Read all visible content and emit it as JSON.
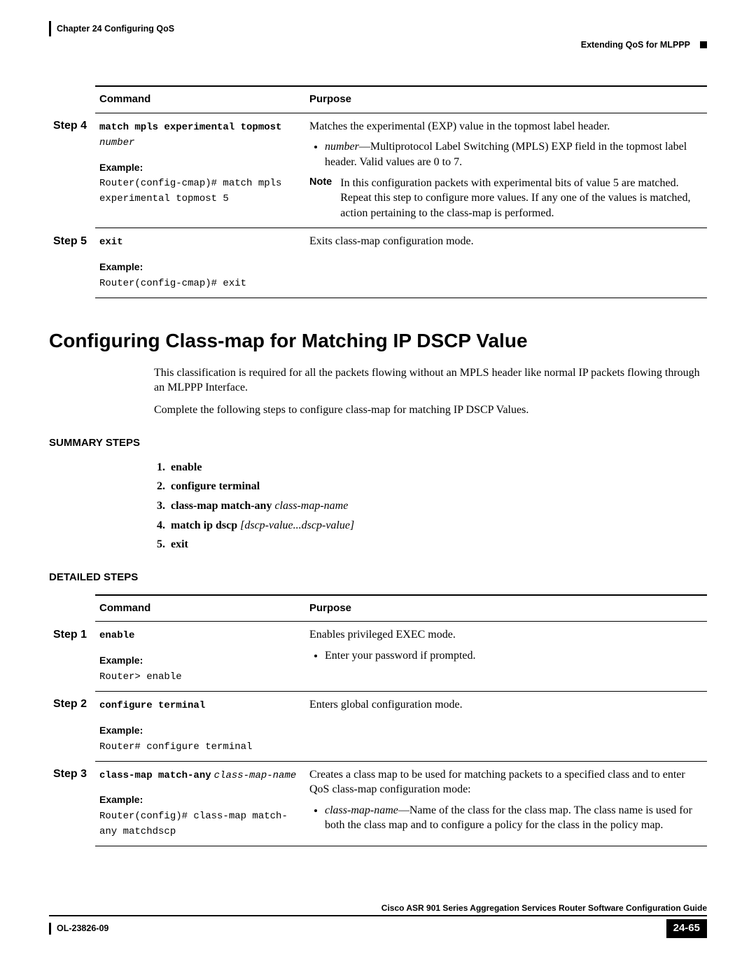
{
  "header": {
    "chapter_line": "Chapter 24    Configuring QoS",
    "right_text": "Extending QoS for MLPPP"
  },
  "table1": {
    "head_command": "Command",
    "head_purpose": "Purpose",
    "step4": {
      "label": "Step 4",
      "cmd": "match mpls experimental topmost",
      "cmd_arg": "number",
      "example_label": "Example:",
      "example_code": "Router(config-cmap)# match mpls experimental topmost 5",
      "purpose_intro": "Matches the experimental (EXP) value in the topmost label header.",
      "bullet_arg": "number",
      "bullet_rest": "—Multiprotocol Label Switching (MPLS) EXP field in the topmost label header. Valid values are 0 to 7.",
      "note_label": "Note",
      "note_text": "In this configuration packets with experimental bits of value 5 are matched. Repeat this step to configure more values. If any one of the values is matched, action pertaining to the class-map is performed."
    },
    "step5": {
      "label": "Step 5",
      "cmd": "exit",
      "example_label": "Example:",
      "example_code": "Router(config-cmap)# exit",
      "purpose": "Exits class-map configuration mode."
    }
  },
  "section": {
    "title": "Configuring Class-map for Matching IP DSCP Value",
    "para1": "This classification is required for all the packets flowing without an MPLS header like normal IP packets flowing through an MLPPP Interface.",
    "para2": "Complete the following steps to configure class-map for matching IP DSCP Values."
  },
  "summary": {
    "heading": "SUMMARY STEPS",
    "s1": "enable",
    "s2": "configure terminal",
    "s3_cmd": "class-map match-any",
    "s3_arg": "class-map-name",
    "s4_cmd": "match ip dscp",
    "s4_arg": "[dscp-value...dscp-value]",
    "s5": "exit"
  },
  "detailed_heading": "DETAILED STEPS",
  "table2": {
    "head_command": "Command",
    "head_purpose": "Purpose",
    "step1": {
      "label": "Step 1",
      "cmd": "enable",
      "example_label": "Example:",
      "example_code": "Router> enable",
      "purpose": "Enables privileged EXEC mode.",
      "bullet": "Enter your password if prompted."
    },
    "step2": {
      "label": "Step 2",
      "cmd": "configure terminal",
      "example_label": "Example:",
      "example_code": "Router# configure terminal",
      "purpose": "Enters global configuration mode."
    },
    "step3": {
      "label": "Step 3",
      "cmd": "class-map match-any",
      "cmd_arg": "class-map-name",
      "example_label": "Example:",
      "example_code": "Router(config)# class-map match-any matchdscp",
      "purpose": "Creates a class map to be used for matching packets to a specified class and to enter QoS class-map configuration mode:",
      "bullet_arg": "class-map-name",
      "bullet_rest": "—Name of the class for the class map. The class name is used for both the class map and to configure a policy for the class in the policy map."
    }
  },
  "footer": {
    "guide": "Cisco ASR 901 Series Aggregation Services Router Software Configuration Guide",
    "doc_id": "OL-23826-09",
    "page": "24-65"
  }
}
